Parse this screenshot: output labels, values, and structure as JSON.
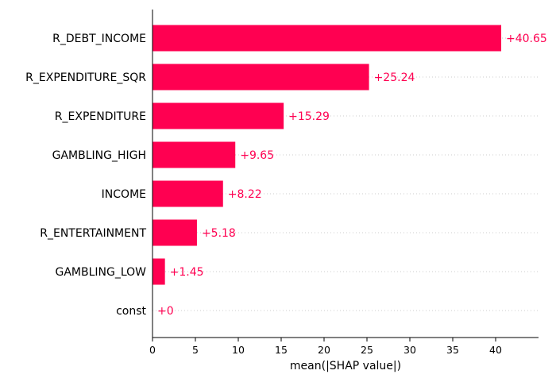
{
  "chart_data": {
    "type": "bar",
    "orientation": "horizontal",
    "categories": [
      "R_DEBT_INCOME",
      "R_EXPENDITURE_SQR",
      "R_EXPENDITURE",
      "GAMBLING_HIGH",
      "INCOME",
      "R_ENTERTAINMENT",
      "GAMBLING_LOW",
      "const"
    ],
    "values": [
      40.65,
      25.24,
      15.29,
      9.65,
      8.22,
      5.18,
      1.45,
      0
    ],
    "value_labels": [
      "+40.65",
      "+25.24",
      "+15.29",
      "+9.65",
      "+8.22",
      "+5.18",
      "+1.45",
      "+0"
    ],
    "xlabel": "mean(|SHAP value|)",
    "xlim": [
      0,
      45
    ],
    "xticks": [
      0,
      5,
      10,
      15,
      20,
      25,
      30,
      35,
      40
    ],
    "xtick_labels": [
      "0",
      "5",
      "10",
      "15",
      "20",
      "25",
      "30",
      "35",
      "40"
    ],
    "grid": "dotted horizontal guides",
    "bar_color": "#ff0051"
  }
}
